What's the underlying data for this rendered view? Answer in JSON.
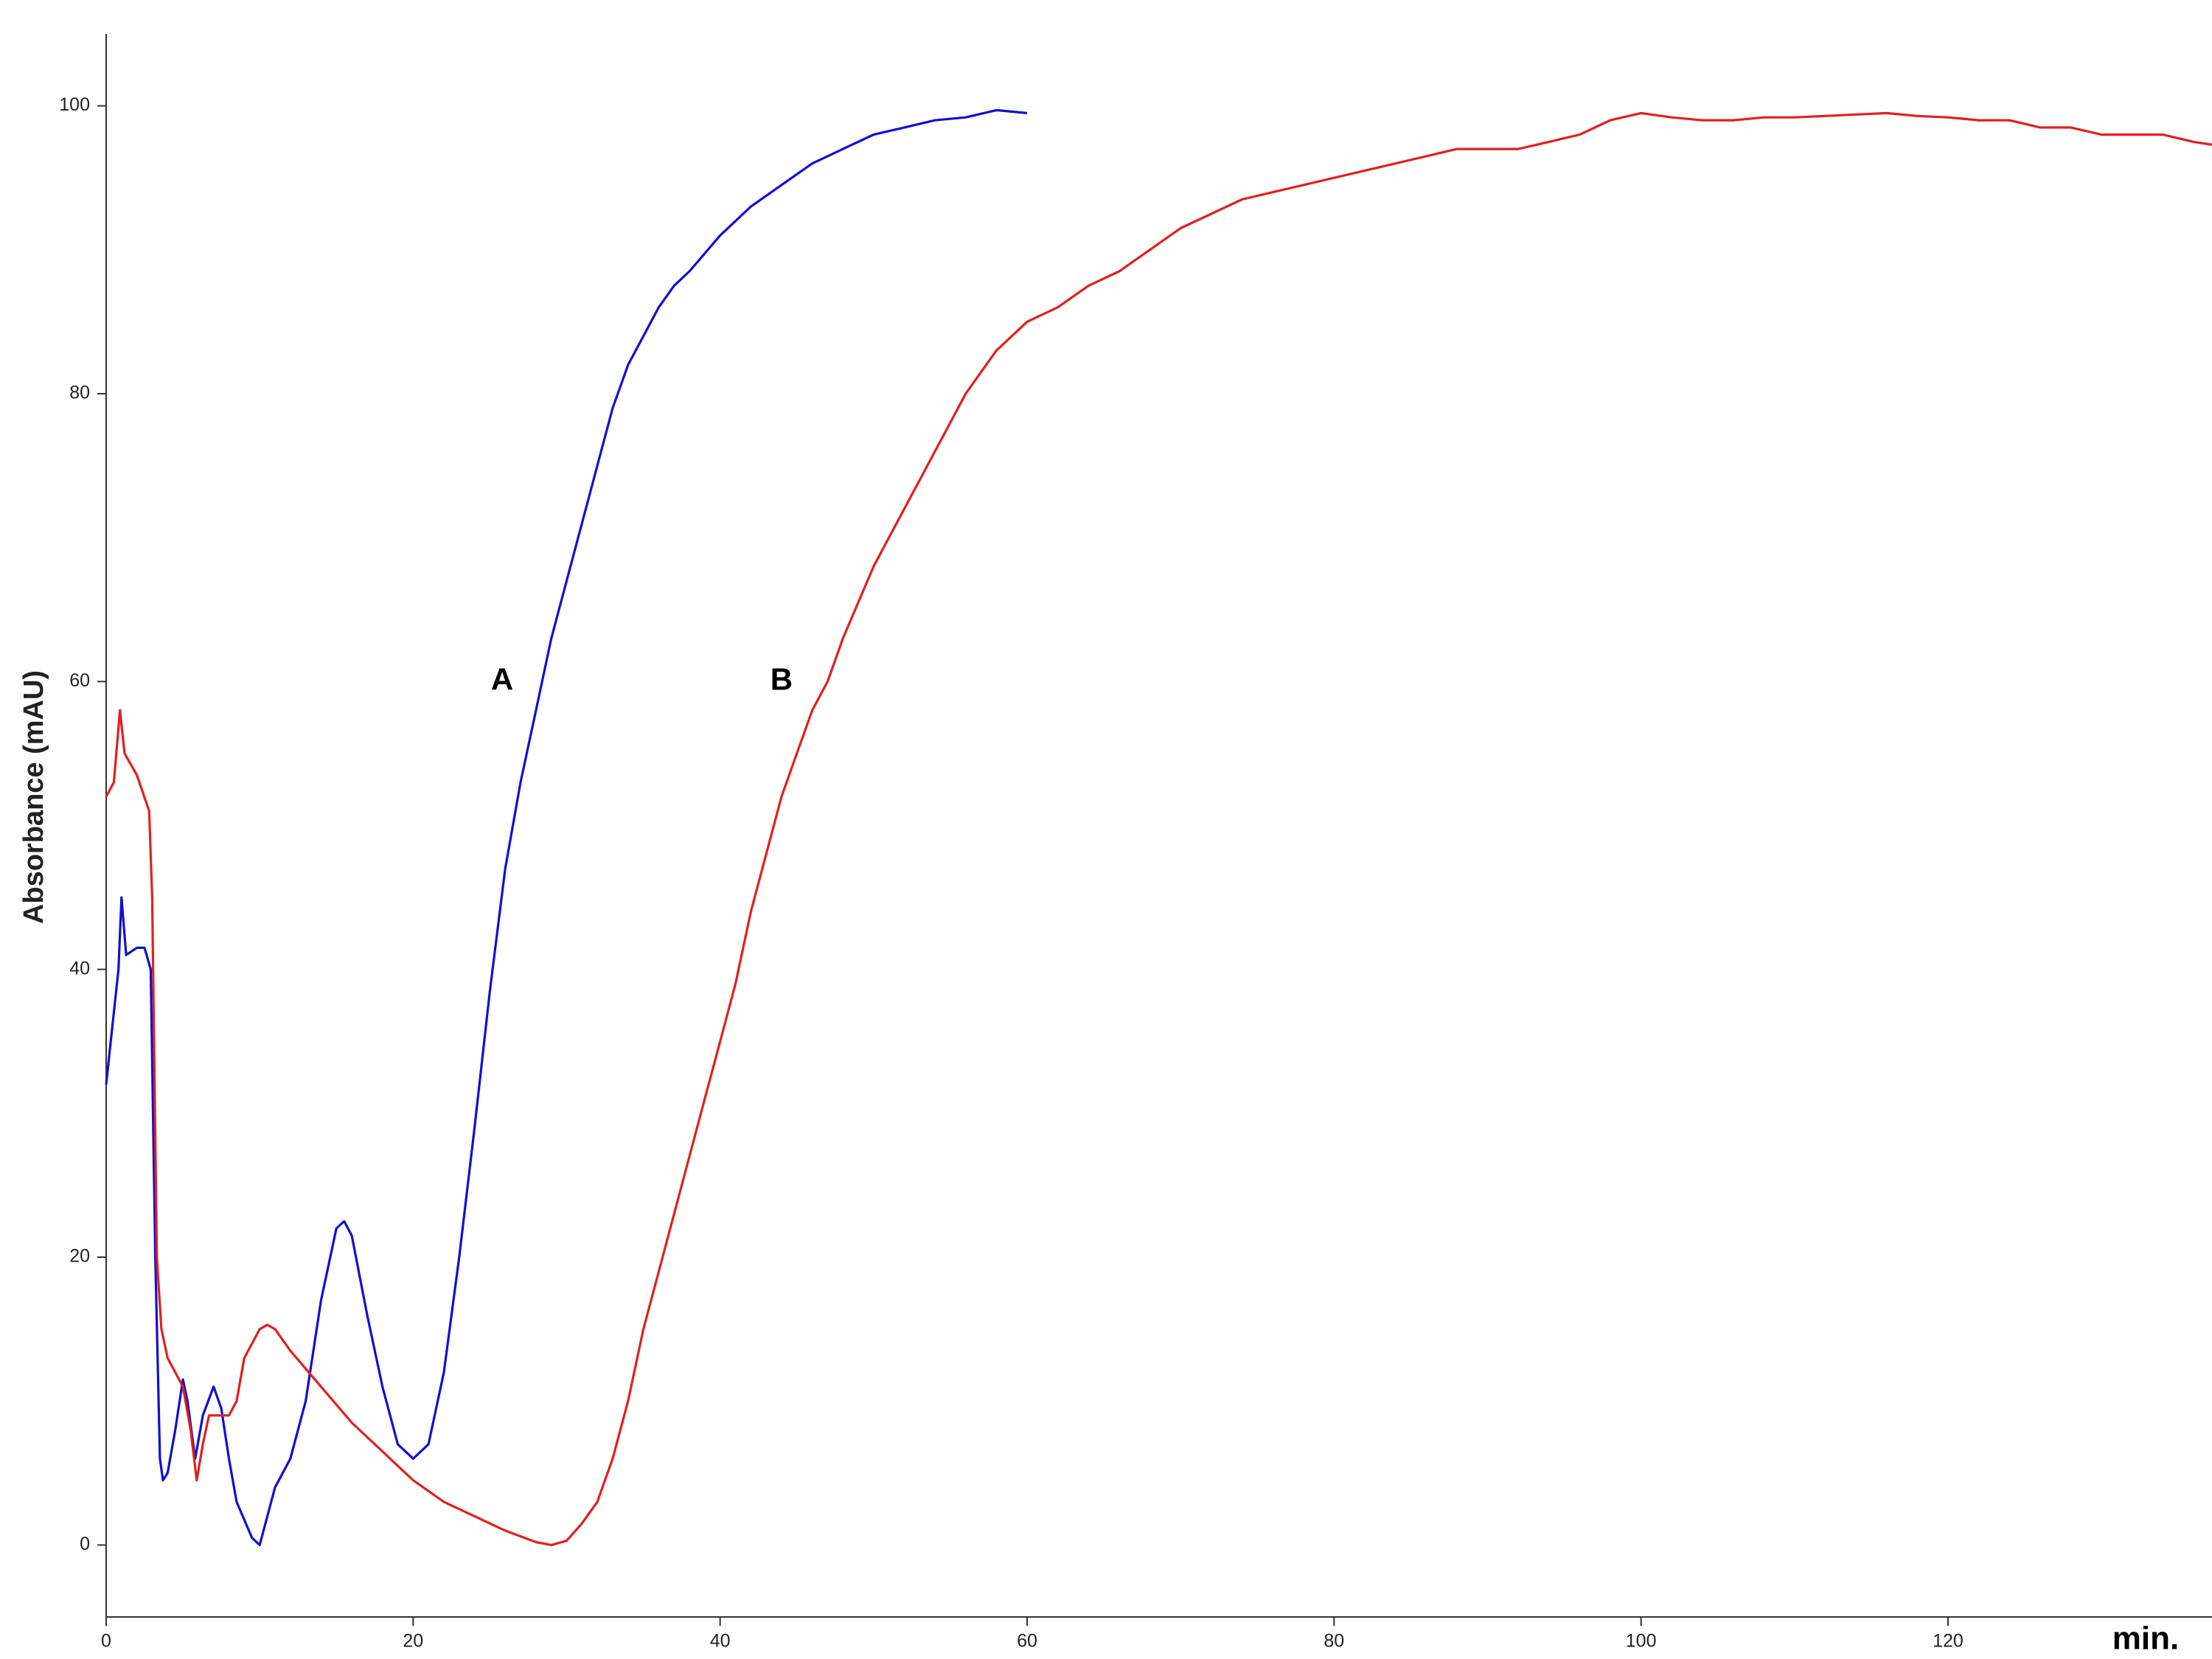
{
  "chart_data": {
    "type": "line",
    "y_label": "Absorbance (mAU)",
    "x_label": "min.",
    "xlim": [
      0,
      137.2
    ],
    "ylim": [
      -5,
      105
    ],
    "xticks": [
      0,
      20,
      40,
      60,
      80,
      100,
      120
    ],
    "yticks": [
      0,
      20,
      40,
      60,
      80,
      100
    ],
    "annotations": [
      {
        "text": "A",
        "x": 25.8,
        "y": 60
      },
      {
        "text": "B",
        "x": 44,
        "y": 60
      }
    ],
    "series": [
      {
        "name": "A",
        "color": "#1010d0",
        "x": [
          0,
          0.3,
          0.8,
          1,
          1.3,
          2,
          2.5,
          2.9,
          3.2,
          3.5,
          3.7,
          4,
          4.5,
          5,
          5.3,
          5.8,
          6.3,
          7,
          7.5,
          8,
          8.5,
          9.5,
          10,
          10.5,
          11,
          12,
          13,
          14,
          15,
          15.5,
          16,
          17,
          18,
          19,
          20,
          21,
          22,
          23,
          24,
          25,
          26,
          27,
          28,
          29,
          30,
          31,
          32,
          33,
          34,
          35,
          36,
          37,
          38,
          40,
          42,
          44,
          46,
          48,
          50,
          52,
          54,
          56,
          58,
          60
        ],
        "values": [
          32,
          35,
          40,
          45,
          41,
          41.5,
          41.5,
          40,
          20,
          6,
          4.5,
          5,
          8,
          11.5,
          10,
          6,
          9,
          11,
          9.5,
          6,
          3,
          0.5,
          0,
          2,
          4,
          6,
          10,
          17,
          22,
          22.5,
          21.5,
          16,
          11,
          7,
          6,
          7,
          12,
          20,
          29,
          38.5,
          47,
          53,
          58,
          63,
          67,
          71,
          75,
          79,
          82,
          84,
          86,
          87.5,
          88.5,
          91,
          93,
          94.5,
          96,
          97,
          98,
          98.5,
          99,
          99.2,
          99.7,
          99.5
        ]
      },
      {
        "name": "B",
        "color": "#e02020",
        "x": [
          0,
          0.5,
          0.9,
          1.2,
          2,
          2.8,
          3,
          3.3,
          3.6,
          4,
          5,
          5.5,
          5.9,
          6.3,
          6.7,
          7.5,
          8,
          8.5,
          9,
          10,
          10.5,
          11,
          12,
          14,
          16,
          18,
          20,
          22,
          24,
          26,
          28,
          29,
          30,
          31,
          32,
          33,
          34,
          35,
          36,
          37,
          38,
          39,
          40,
          41,
          42,
          43,
          44,
          45,
          46,
          47,
          48,
          49,
          50,
          51,
          52,
          53,
          54,
          55,
          56,
          57,
          58,
          60,
          62,
          64,
          66,
          68,
          70,
          72,
          74,
          76,
          78,
          80,
          82,
          84,
          86,
          88,
          90,
          92,
          94,
          96,
          98,
          100,
          102,
          104,
          106,
          108,
          110,
          112,
          114,
          116,
          118,
          120,
          122,
          124,
          126,
          128,
          130,
          132,
          134,
          136,
          137.2
        ],
        "values": [
          52,
          53,
          58,
          55,
          53.5,
          51,
          45,
          20,
          15,
          13,
          11,
          8,
          4.5,
          7,
          9,
          9,
          9,
          10,
          13,
          15,
          15.3,
          15,
          13.5,
          11,
          8.5,
          6.5,
          4.5,
          3,
          2,
          1,
          0.2,
          0,
          0.3,
          1.5,
          3,
          6,
          10,
          15,
          19,
          23,
          27,
          31,
          35,
          39,
          44,
          48,
          52,
          55,
          58,
          60,
          63,
          65.5,
          68,
          70,
          72,
          74,
          76,
          78,
          80,
          81.5,
          83,
          85,
          86,
          87.5,
          88.5,
          90,
          91.5,
          92.5,
          93.5,
          94,
          94.5,
          95,
          95.5,
          96,
          96.5,
          97,
          97,
          97,
          97.5,
          98,
          99,
          99.5,
          99.2,
          99,
          99,
          99.2,
          99.2,
          99.3,
          99.4,
          99.5,
          99.3,
          99.2,
          99,
          99,
          98.5,
          98.5,
          98,
          98,
          98,
          97.5,
          97.3
        ]
      }
    ]
  }
}
